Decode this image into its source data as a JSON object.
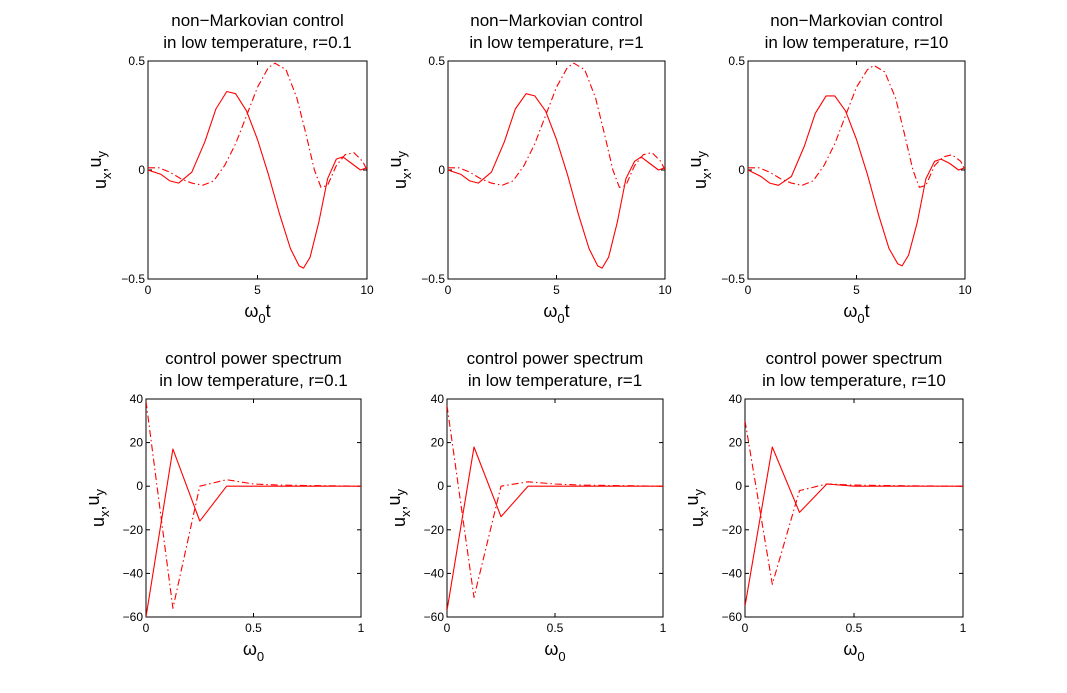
{
  "colors": {
    "series": "#ff0000",
    "axes": "#000000",
    "background": "#ffffff"
  },
  "chart_data": [
    {
      "type": "line",
      "title_lines": [
        "non−Markovian control",
        "in low temperature, r=0.1"
      ],
      "xlabel": "ω0t",
      "ylabel": "ux,uy",
      "xlim": [
        0,
        10
      ],
      "ylim": [
        -0.5,
        0.5
      ],
      "xticks": [
        0,
        5,
        10
      ],
      "yticks": [
        -0.5,
        0,
        0.5
      ],
      "xtick_labels": [
        "0",
        "5",
        "10"
      ],
      "ytick_labels": [
        "−0.5",
        "0",
        "0.5"
      ],
      "series": [
        {
          "line_style": "solid",
          "x": [
            0,
            0.6,
            1,
            1.4,
            2,
            2.6,
            3.1,
            3.6,
            4,
            4.5,
            5,
            5.5,
            6,
            6.5,
            6.9,
            7.1,
            7.4,
            7.8,
            8.2,
            8.6,
            8.9,
            9.3,
            9.7,
            10
          ],
          "y": [
            0,
            -0.02,
            -0.05,
            -0.06,
            -0.01,
            0.13,
            0.28,
            0.36,
            0.35,
            0.27,
            0.14,
            -0.02,
            -0.2,
            -0.36,
            -0.44,
            -0.45,
            -0.4,
            -0.24,
            -0.04,
            0.05,
            0.06,
            0.03,
            0,
            0.01
          ]
        },
        {
          "line_style": "dash-dot",
          "x": [
            0,
            0.5,
            1,
            1.5,
            2,
            2.5,
            3,
            3.5,
            4,
            4.5,
            5,
            5.5,
            5.8,
            6.3,
            6.8,
            7.2,
            7.6,
            7.9,
            8.2,
            8.6,
            9,
            9.4,
            9.8,
            10
          ],
          "y": [
            0.01,
            0.01,
            -0.01,
            -0.04,
            -0.06,
            -0.07,
            -0.05,
            0.02,
            0.12,
            0.25,
            0.38,
            0.47,
            0.49,
            0.46,
            0.33,
            0.17,
            0,
            -0.08,
            -0.07,
            0.02,
            0.07,
            0.08,
            0.04,
            0
          ]
        }
      ]
    },
    {
      "type": "line",
      "title_lines": [
        "non−Markovian control",
        "in low temperature, r=1"
      ],
      "xlabel": "ω0t",
      "ylabel": "ux,uy",
      "xlim": [
        0,
        10
      ],
      "ylim": [
        -0.5,
        0.5
      ],
      "xticks": [
        0,
        5,
        10
      ],
      "yticks": [
        -0.5,
        0,
        0.5
      ],
      "xtick_labels": [
        "0",
        "5",
        "10"
      ],
      "ytick_labels": [
        "−0.5",
        "0",
        "0.5"
      ],
      "series": [
        {
          "line_style": "solid",
          "x": [
            0,
            0.6,
            1,
            1.4,
            2,
            2.6,
            3.1,
            3.6,
            4,
            4.5,
            5,
            5.5,
            6,
            6.5,
            6.9,
            7.1,
            7.4,
            7.8,
            8.2,
            8.6,
            8.9,
            9.3,
            9.7,
            10
          ],
          "y": [
            0,
            -0.02,
            -0.05,
            -0.06,
            -0.01,
            0.13,
            0.28,
            0.35,
            0.34,
            0.27,
            0.14,
            -0.02,
            -0.2,
            -0.36,
            -0.44,
            -0.45,
            -0.4,
            -0.24,
            -0.04,
            0.04,
            0.06,
            0.03,
            0,
            0.01
          ]
        },
        {
          "line_style": "dash-dot",
          "x": [
            0,
            0.5,
            1,
            1.5,
            2,
            2.5,
            3,
            3.5,
            4,
            4.5,
            5,
            5.5,
            5.8,
            6.3,
            6.8,
            7.2,
            7.6,
            7.9,
            8.2,
            8.6,
            9,
            9.4,
            9.8,
            10
          ],
          "y": [
            0.01,
            0.01,
            -0.01,
            -0.04,
            -0.06,
            -0.07,
            -0.05,
            0.02,
            0.12,
            0.25,
            0.38,
            0.47,
            0.49,
            0.46,
            0.33,
            0.17,
            0,
            -0.08,
            -0.07,
            0.02,
            0.07,
            0.08,
            0.04,
            0
          ]
        }
      ]
    },
    {
      "type": "line",
      "title_lines": [
        "non−Markovian control",
        "in low temperature, r=10"
      ],
      "xlabel": "ω0t",
      "ylabel": "ux,uy",
      "xlim": [
        0,
        10
      ],
      "ylim": [
        -0.5,
        0.5
      ],
      "xticks": [
        0,
        5,
        10
      ],
      "yticks": [
        -0.5,
        0,
        0.5
      ],
      "xtick_labels": [
        "0",
        "5",
        "10"
      ],
      "ytick_labels": [
        "−0.5",
        "0",
        "0.5"
      ],
      "series": [
        {
          "line_style": "solid",
          "x": [
            0,
            0.6,
            1,
            1.4,
            2,
            2.6,
            3.1,
            3.6,
            4,
            4.5,
            5,
            5.5,
            6,
            6.5,
            6.9,
            7.1,
            7.4,
            7.8,
            8.2,
            8.6,
            8.9,
            9.3,
            9.7,
            10
          ],
          "y": [
            0,
            -0.03,
            -0.06,
            -0.07,
            -0.03,
            0.11,
            0.26,
            0.34,
            0.34,
            0.27,
            0.14,
            -0.02,
            -0.2,
            -0.36,
            -0.43,
            -0.44,
            -0.39,
            -0.24,
            -0.04,
            0.04,
            0.05,
            0.03,
            0,
            0.01
          ]
        },
        {
          "line_style": "dash-dot",
          "x": [
            0,
            0.5,
            1,
            1.5,
            2,
            2.5,
            3,
            3.5,
            4,
            4.5,
            5,
            5.5,
            5.8,
            6.3,
            6.8,
            7.2,
            7.6,
            7.9,
            8.2,
            8.6,
            9,
            9.4,
            9.8,
            10
          ],
          "y": [
            0.01,
            0.01,
            -0.01,
            -0.04,
            -0.06,
            -0.07,
            -0.05,
            0.02,
            0.12,
            0.25,
            0.38,
            0.46,
            0.48,
            0.45,
            0.33,
            0.17,
            0,
            -0.08,
            -0.07,
            0.02,
            0.06,
            0.07,
            0.04,
            0
          ]
        }
      ]
    },
    {
      "type": "line",
      "title_lines": [
        "control power spectrum",
        "in low temperature, r=0.1"
      ],
      "xlabel": "ω0",
      "ylabel": "ux,uy",
      "xlim": [
        0,
        1
      ],
      "ylim": [
        -60,
        40
      ],
      "xticks": [
        0,
        0.5,
        1
      ],
      "yticks": [
        -60,
        -40,
        -20,
        0,
        20,
        40
      ],
      "xtick_labels": [
        "0",
        "0.5",
        "1"
      ],
      "ytick_labels": [
        "−60",
        "−40",
        "−20",
        "0",
        "20",
        "40"
      ],
      "series": [
        {
          "line_style": "solid",
          "x": [
            0,
            0.125,
            0.25,
            0.375,
            0.5,
            0.625,
            0.75,
            0.875,
            1
          ],
          "y": [
            -60,
            17,
            -16,
            0,
            0,
            0,
            0,
            0,
            0
          ]
        },
        {
          "line_style": "dash-dot",
          "x": [
            0,
            0.125,
            0.25,
            0.375,
            0.5,
            0.625,
            0.75,
            0.875,
            1
          ],
          "y": [
            39,
            -56,
            0,
            3,
            1,
            0.5,
            0.3,
            0.2,
            0
          ]
        }
      ]
    },
    {
      "type": "line",
      "title_lines": [
        "control power spectrum",
        "in low temperature, r=1"
      ],
      "xlabel": "ω0",
      "ylabel": "ux,uy",
      "xlim": [
        0,
        1
      ],
      "ylim": [
        -60,
        40
      ],
      "xticks": [
        0,
        0.5,
        1
      ],
      "yticks": [
        -60,
        -40,
        -20,
        0,
        20,
        40
      ],
      "xtick_labels": [
        "0",
        "0.5",
        "1"
      ],
      "ytick_labels": [
        "−60",
        "−40",
        "−20",
        "0",
        "20",
        "40"
      ],
      "series": [
        {
          "line_style": "solid",
          "x": [
            0,
            0.125,
            0.25,
            0.375,
            0.5,
            0.625,
            0.75,
            0.875,
            1
          ],
          "y": [
            -57,
            18,
            -14,
            0,
            0,
            0,
            0,
            0,
            0
          ]
        },
        {
          "line_style": "dash-dot",
          "x": [
            0,
            0.125,
            0.25,
            0.375,
            0.5,
            0.625,
            0.75,
            0.875,
            1
          ],
          "y": [
            37,
            -51,
            0,
            2,
            1,
            0.5,
            0.3,
            0.2,
            0
          ]
        }
      ]
    },
    {
      "type": "line",
      "title_lines": [
        "control power spectrum",
        "in low temperature, r=10"
      ],
      "xlabel": "ω0",
      "ylabel": "ux,uy",
      "xlim": [
        0,
        1
      ],
      "ylim": [
        -60,
        40
      ],
      "xticks": [
        0,
        0.5,
        1
      ],
      "yticks": [
        -60,
        -40,
        -20,
        0,
        20,
        40
      ],
      "xtick_labels": [
        "0",
        "0.5",
        "1"
      ],
      "ytick_labels": [
        "−60",
        "−40",
        "−20",
        "0",
        "20",
        "40"
      ],
      "series": [
        {
          "line_style": "solid",
          "x": [
            0,
            0.125,
            0.25,
            0.375,
            0.5,
            0.625,
            0.75,
            0.875,
            1
          ],
          "y": [
            -55,
            18,
            -12,
            1,
            0,
            0,
            0,
            0,
            0
          ]
        },
        {
          "line_style": "dash-dot",
          "x": [
            0,
            0.125,
            0.25,
            0.375,
            0.5,
            0.625,
            0.75,
            0.875,
            1
          ],
          "y": [
            30,
            -45,
            -2,
            1,
            0.5,
            0.3,
            0.2,
            0.1,
            0
          ]
        }
      ]
    }
  ]
}
